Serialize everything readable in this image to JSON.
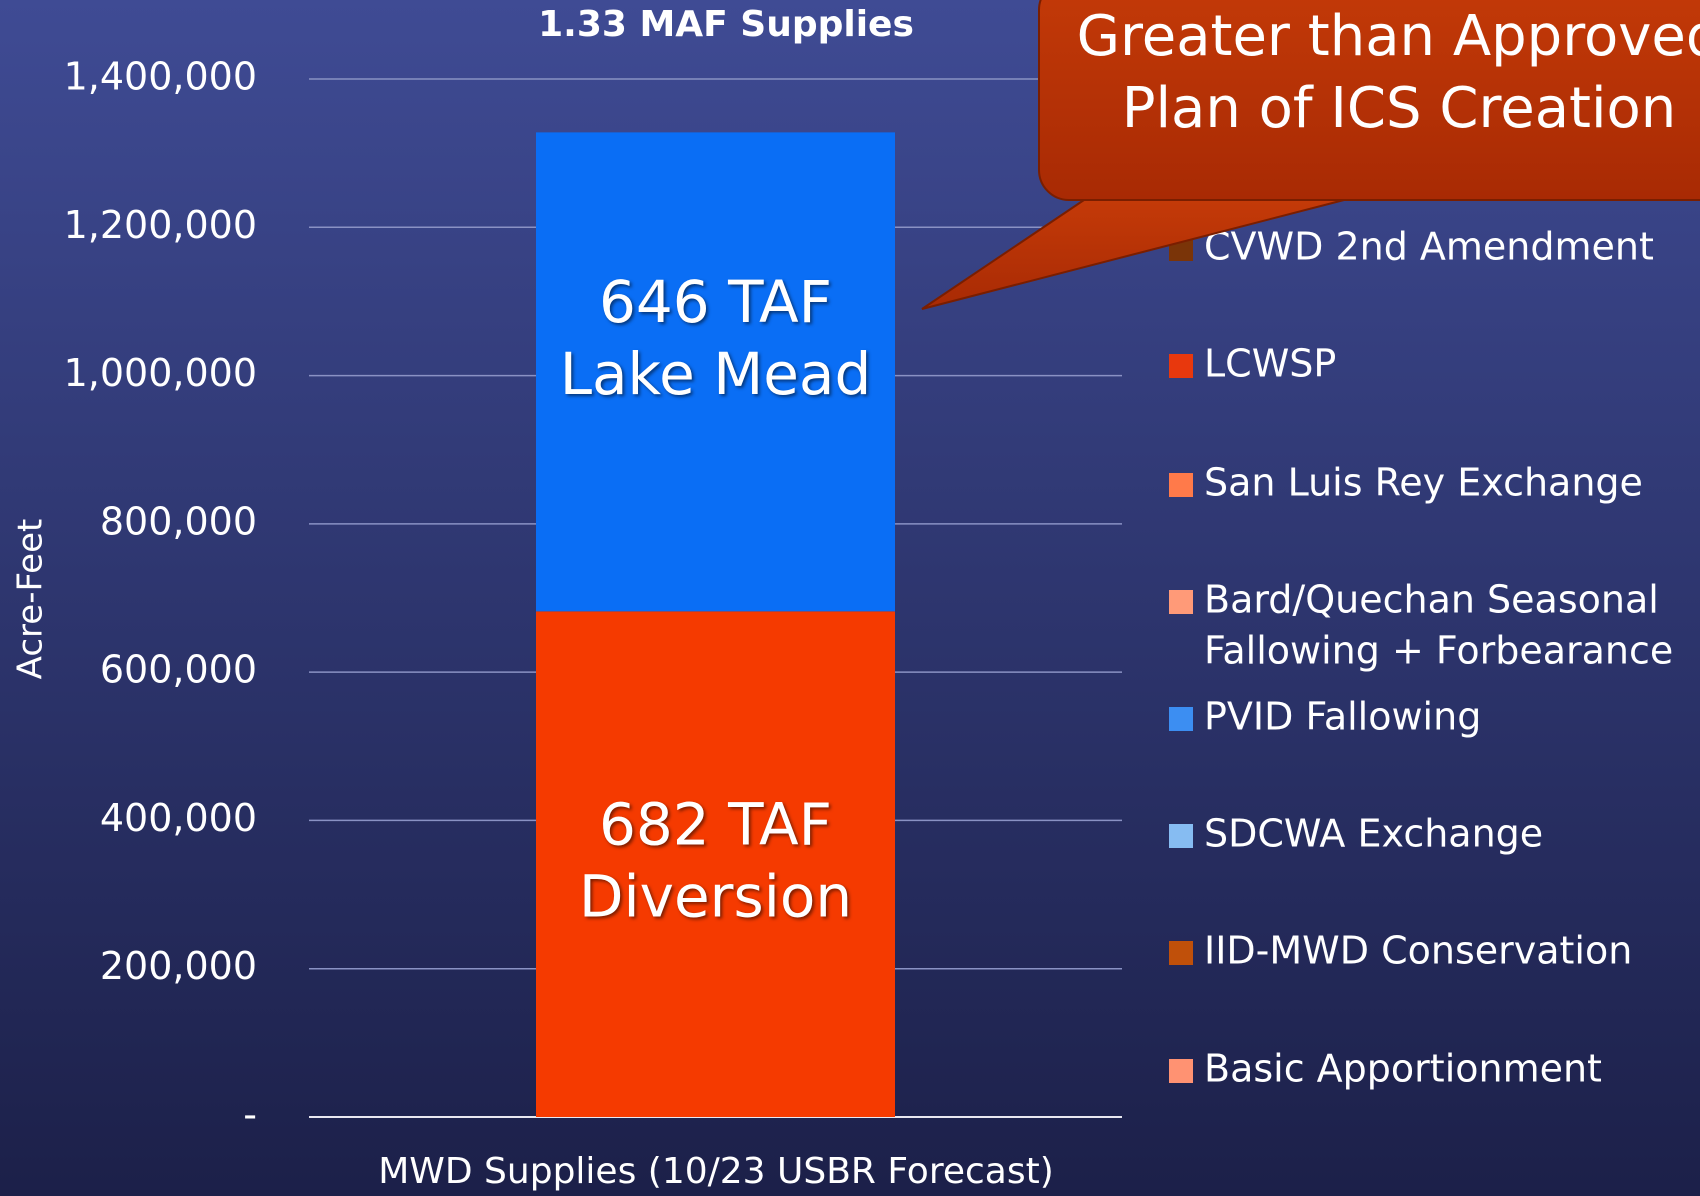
{
  "chart_data": {
    "type": "stacked_bar",
    "title": "1.33 MAF Supplies",
    "y_label": "Acre-Feet",
    "categories": [
      "MWD Supplies (10/23 USBR Forecast)"
    ],
    "series": [
      {
        "color": "#f53a00",
        "values": [
          682000
        ],
        "label_lines": [
          "682 TAF",
          "Diversion"
        ]
      },
      {
        "color": "#0a6ef5",
        "values": [
          646000
        ],
        "label_lines": [
          "646 TAF",
          "Lake Mead"
        ]
      }
    ],
    "ylim": [
      0,
      1400000
    ],
    "yticks": [
      {
        "value": 0,
        "label": "-"
      },
      {
        "value": 200000,
        "label": "200,000"
      },
      {
        "value": 400000,
        "label": "400,000"
      },
      {
        "value": 600000,
        "label": "600,000"
      },
      {
        "value": 800000,
        "label": "800,000"
      },
      {
        "value": 1000000,
        "label": "1,000,000"
      },
      {
        "value": 1200000,
        "label": "1,200,000"
      },
      {
        "value": 1400000,
        "label": "1,400,000"
      }
    ],
    "grid": true,
    "legend": [
      {
        "lines": [
          "CVWD 2nd Amendment"
        ],
        "color": "#7a3408"
      },
      {
        "lines": [
          "LCWSP"
        ],
        "color": "#e8380d"
      },
      {
        "lines": [
          "San Luis Rey Exchange"
        ],
        "color": "#ff7a4a"
      },
      {
        "lines": [
          "Bard/Quechan Seasonal",
          "Fallowing + Forbearance"
        ],
        "color": "#ff9a78"
      },
      {
        "lines": [
          "PVID Fallowing"
        ],
        "color": "#3c8ef2"
      },
      {
        "lines": [
          "SDCWA Exchange"
        ],
        "color": "#86bcf2"
      },
      {
        "lines": [
          "IID-MWD Conservation"
        ],
        "color": "#c0500a"
      },
      {
        "lines": [
          "Basic Apportionment"
        ],
        "color": "#ff9272"
      }
    ],
    "callout": [
      "Greater than Approved",
      "Plan of ICS Creation"
    ]
  }
}
